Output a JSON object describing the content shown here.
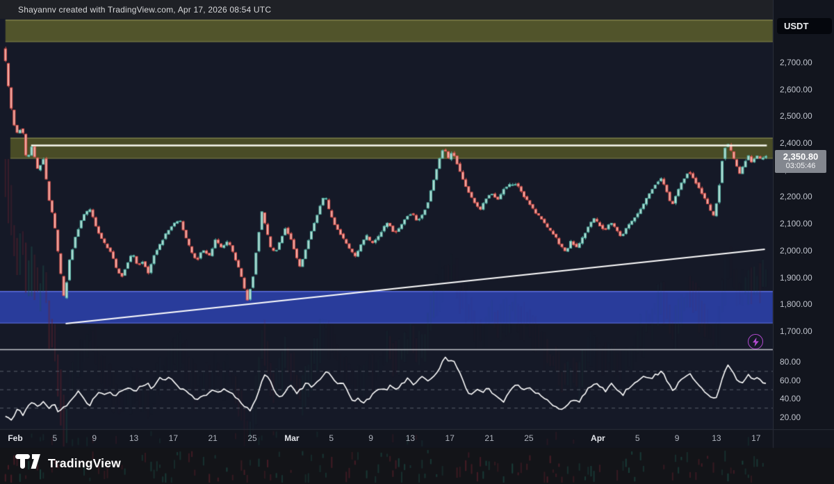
{
  "watermark": {
    "text": "Shayannv created with TradingView.com, Apr 17, 2026 08:54 UTC"
  },
  "symbol_badge": {
    "label": "USDT"
  },
  "logo": {
    "text": "TradingView",
    "icon": "tradingview-mark"
  },
  "price_badge": {
    "price": "2,350.80",
    "countdown": "03:05:46"
  },
  "price_axis": {
    "ticks": [
      {
        "label": "2,700.00",
        "value": 2700
      },
      {
        "label": "2,600.00",
        "value": 2600
      },
      {
        "label": "2,500.00",
        "value": 2500
      },
      {
        "label": "2,400.00",
        "value": 2400
      },
      {
        "label": "2,300.00",
        "value": 2300
      },
      {
        "label": "2,200.00",
        "value": 2200
      },
      {
        "label": "2,100.00",
        "value": 2100
      },
      {
        "label": "2,000.00",
        "value": 2000
      },
      {
        "label": "1,900.00",
        "value": 1900
      },
      {
        "label": "1,800.00",
        "value": 1800
      },
      {
        "label": "1,700.00",
        "value": 1700
      }
    ]
  },
  "rsi_axis": {
    "ticks": [
      {
        "label": "80.00",
        "value": 80
      },
      {
        "label": "60.00",
        "value": 60
      },
      {
        "label": "40.00",
        "value": 40
      },
      {
        "label": "20.00",
        "value": 20
      }
    ]
  },
  "x_axis": {
    "labels": [
      {
        "text": "Feb",
        "day": 0,
        "month": true
      },
      {
        "text": "5",
        "day": 4
      },
      {
        "text": "9",
        "day": 8
      },
      {
        "text": "13",
        "day": 12
      },
      {
        "text": "17",
        "day": 16
      },
      {
        "text": "21",
        "day": 20
      },
      {
        "text": "25",
        "day": 24
      },
      {
        "text": "Mar",
        "day": 28,
        "month": true
      },
      {
        "text": "5",
        "day": 32
      },
      {
        "text": "9",
        "day": 36
      },
      {
        "text": "13",
        "day": 40
      },
      {
        "text": "17",
        "day": 44
      },
      {
        "text": "21",
        "day": 48
      },
      {
        "text": "25",
        "day": 52
      },
      {
        "text": "Apr",
        "day": 59,
        "month": true
      },
      {
        "text": "5",
        "day": 63
      },
      {
        "text": "9",
        "day": 67
      },
      {
        "text": "13",
        "day": 71
      },
      {
        "text": "17",
        "day": 75
      }
    ]
  },
  "chart_data": {
    "type": "candlestick",
    "quote_currency": "USDT",
    "period_shown": "Feb 1 - Apr 17",
    "last_price": 2350.8,
    "countdown": "03:05:46",
    "y_axis": {
      "min": 1633,
      "max": 2862,
      "tick_step": 100,
      "ticks": [
        2700,
        2600,
        2500,
        2400,
        2300,
        2200,
        2100,
        2000,
        1900,
        1800,
        1700
      ]
    },
    "x_axis_days": {
      "start_day": -1.6,
      "end_day": 76.7
    },
    "zones": [
      {
        "name": "upper-band",
        "price_from": 2777,
        "price_to": 2857,
        "day_from": -1.0,
        "day_to": 76.7,
        "fill": "#54562c",
        "border": "#84864b"
      },
      {
        "name": "resistance-zone",
        "price_from": 2343,
        "price_to": 2418,
        "day_from": -0.5,
        "day_to": 76.7,
        "fill": "#4c4e27",
        "border": "#7e8048"
      },
      {
        "name": "support-zone",
        "price_from": 1731,
        "price_to": 1848,
        "day_from": -1.6,
        "day_to": 76.7,
        "fill": "#2b3da0",
        "border": "#5d6fe0"
      }
    ],
    "hline": {
      "price": 2391,
      "day_from": 1.6,
      "day_to": 76.1,
      "color": "#fafaf2"
    },
    "trendline": {
      "from_day": 5.1,
      "from_price": 1729,
      "to_day": 75.9,
      "to_price": 2005,
      "color": "#ffffff"
    },
    "price_path": [
      [
        -1.0,
        2750
      ],
      [
        -0.6,
        2620
      ],
      [
        -0.1,
        2480
      ],
      [
        0.4,
        2430
      ],
      [
        0.8,
        2470
      ],
      [
        1.3,
        2330
      ],
      [
        1.8,
        2390
      ],
      [
        2.4,
        2300
      ],
      [
        3.0,
        2340
      ],
      [
        3.5,
        2200
      ],
      [
        4.1,
        2100
      ],
      [
        4.6,
        1950
      ],
      [
        5.1,
        1815
      ],
      [
        5.6,
        1960
      ],
      [
        6.3,
        2060
      ],
      [
        7.0,
        2130
      ],
      [
        7.7,
        2155
      ],
      [
        8.4,
        2080
      ],
      [
        9.1,
        2030
      ],
      [
        9.9,
        1990
      ],
      [
        10.4,
        1930
      ],
      [
        10.9,
        1903
      ],
      [
        11.5,
        1955
      ],
      [
        12.0,
        1990
      ],
      [
        12.5,
        1945
      ],
      [
        13.1,
        1960
      ],
      [
        13.6,
        1915
      ],
      [
        14.2,
        1985
      ],
      [
        14.9,
        2030
      ],
      [
        15.5,
        2070
      ],
      [
        16.2,
        2100
      ],
      [
        16.8,
        2115
      ],
      [
        17.3,
        2060
      ],
      [
        17.9,
        2000
      ],
      [
        18.5,
        1962
      ],
      [
        19.1,
        2005
      ],
      [
        19.8,
        1980
      ],
      [
        20.4,
        2040
      ],
      [
        21.0,
        2010
      ],
      [
        21.7,
        2035
      ],
      [
        22.2,
        1990
      ],
      [
        22.8,
        1930
      ],
      [
        23.2,
        1880
      ],
      [
        23.6,
        1812
      ],
      [
        24.2,
        1900
      ],
      [
        24.6,
        2020
      ],
      [
        25.1,
        2145
      ],
      [
        25.5,
        2085
      ],
      [
        26.0,
        2010
      ],
      [
        26.5,
        1995
      ],
      [
        27.0,
        2040
      ],
      [
        27.5,
        2085
      ],
      [
        28.1,
        2040
      ],
      [
        28.6,
        1975
      ],
      [
        29.0,
        1938
      ],
      [
        29.5,
        2000
      ],
      [
        30.0,
        2060
      ],
      [
        30.6,
        2120
      ],
      [
        31.1,
        2180
      ],
      [
        31.5,
        2205
      ],
      [
        31.9,
        2150
      ],
      [
        32.5,
        2095
      ],
      [
        33.1,
        2060
      ],
      [
        33.6,
        2030
      ],
      [
        34.1,
        2000
      ],
      [
        34.6,
        1978
      ],
      [
        35.1,
        2020
      ],
      [
        35.7,
        2055
      ],
      [
        36.2,
        2025
      ],
      [
        36.8,
        2045
      ],
      [
        37.4,
        2085
      ],
      [
        37.9,
        2105
      ],
      [
        38.5,
        2065
      ],
      [
        39.1,
        2085
      ],
      [
        39.7,
        2125
      ],
      [
        40.3,
        2140
      ],
      [
        40.8,
        2110
      ],
      [
        41.4,
        2135
      ],
      [
        41.9,
        2180
      ],
      [
        42.5,
        2260
      ],
      [
        43.0,
        2330
      ],
      [
        43.5,
        2385
      ],
      [
        44.0,
        2340
      ],
      [
        44.4,
        2370
      ],
      [
        44.9,
        2320
      ],
      [
        45.5,
        2260
      ],
      [
        46.0,
        2220
      ],
      [
        46.6,
        2180
      ],
      [
        47.2,
        2150
      ],
      [
        47.7,
        2190
      ],
      [
        48.3,
        2215
      ],
      [
        49.0,
        2190
      ],
      [
        49.6,
        2230
      ],
      [
        50.2,
        2245
      ],
      [
        50.9,
        2250
      ],
      [
        51.5,
        2210
      ],
      [
        52.1,
        2180
      ],
      [
        52.8,
        2140
      ],
      [
        53.4,
        2120
      ],
      [
        54.0,
        2085
      ],
      [
        54.7,
        2060
      ],
      [
        55.3,
        2020
      ],
      [
        55.9,
        1995
      ],
      [
        56.4,
        2035
      ],
      [
        57.0,
        2010
      ],
      [
        57.6,
        2050
      ],
      [
        58.1,
        2085
      ],
      [
        58.7,
        2120
      ],
      [
        59.3,
        2095
      ],
      [
        59.8,
        2075
      ],
      [
        60.4,
        2105
      ],
      [
        60.9,
        2085
      ],
      [
        61.5,
        2050
      ],
      [
        62.1,
        2090
      ],
      [
        62.6,
        2110
      ],
      [
        63.2,
        2140
      ],
      [
        63.8,
        2175
      ],
      [
        64.3,
        2210
      ],
      [
        64.9,
        2245
      ],
      [
        65.5,
        2270
      ],
      [
        66.0,
        2230
      ],
      [
        66.6,
        2165
      ],
      [
        67.1,
        2210
      ],
      [
        67.7,
        2260
      ],
      [
        68.3,
        2295
      ],
      [
        68.8,
        2270
      ],
      [
        69.4,
        2230
      ],
      [
        70.0,
        2190
      ],
      [
        70.5,
        2150
      ],
      [
        70.9,
        2125
      ],
      [
        71.4,
        2240
      ],
      [
        71.8,
        2360
      ],
      [
        72.2,
        2405
      ],
      [
        72.6,
        2370
      ],
      [
        73.0,
        2330
      ],
      [
        73.5,
        2285
      ],
      [
        73.9,
        2320
      ],
      [
        74.3,
        2355
      ],
      [
        74.7,
        2330
      ],
      [
        75.2,
        2350
      ],
      [
        75.6,
        2340
      ],
      [
        76.0,
        2351
      ]
    ],
    "rsi": {
      "levels": [
        70,
        50,
        30
      ],
      "axis_ticks": [
        80,
        60,
        40,
        20
      ],
      "path": [
        [
          -1.5,
          28
        ],
        [
          -1.0,
          22
        ],
        [
          -0.5,
          15
        ],
        [
          0.3,
          30
        ],
        [
          0.8,
          22
        ],
        [
          1.6,
          37
        ],
        [
          2.3,
          30
        ],
        [
          2.8,
          37
        ],
        [
          3.4,
          30
        ],
        [
          3.9,
          36
        ],
        [
          4.4,
          25
        ],
        [
          5.0,
          32
        ],
        [
          5.5,
          36
        ],
        [
          6.0,
          44
        ],
        [
          6.5,
          48
        ],
        [
          7.0,
          40
        ],
        [
          7.5,
          32
        ],
        [
          8.3,
          47
        ],
        [
          9.0,
          43
        ],
        [
          9.6,
          48
        ],
        [
          10.0,
          42
        ],
        [
          10.8,
          50
        ],
        [
          11.5,
          52
        ],
        [
          12.0,
          47
        ],
        [
          12.7,
          54
        ],
        [
          13.4,
          57
        ],
        [
          13.9,
          50
        ],
        [
          14.5,
          63
        ],
        [
          15.1,
          60
        ],
        [
          15.6,
          62
        ],
        [
          16.1,
          57
        ],
        [
          16.6,
          52
        ],
        [
          17.2,
          48
        ],
        [
          17.7,
          45
        ],
        [
          18.3,
          38
        ],
        [
          18.9,
          44
        ],
        [
          19.4,
          42
        ],
        [
          20.0,
          50
        ],
        [
          20.5,
          46
        ],
        [
          21.1,
          52
        ],
        [
          21.7,
          48
        ],
        [
          22.2,
          42
        ],
        [
          22.8,
          36
        ],
        [
          23.4,
          30
        ],
        [
          23.8,
          28
        ],
        [
          24.6,
          45
        ],
        [
          25.2,
          68
        ],
        [
          25.8,
          60
        ],
        [
          26.2,
          50
        ],
        [
          26.8,
          40
        ],
        [
          27.3,
          46
        ],
        [
          27.9,
          55
        ],
        [
          28.4,
          46
        ],
        [
          28.9,
          50
        ],
        [
          29.6,
          58
        ],
        [
          30.1,
          52
        ],
        [
          30.7,
          60
        ],
        [
          31.2,
          64
        ],
        [
          31.6,
          70
        ],
        [
          32.1,
          62
        ],
        [
          32.7,
          55
        ],
        [
          33.2,
          58
        ],
        [
          33.8,
          45
        ],
        [
          34.3,
          36
        ],
        [
          34.8,
          40
        ],
        [
          35.3,
          36
        ],
        [
          35.8,
          40
        ],
        [
          36.4,
          46
        ],
        [
          36.9,
          52
        ],
        [
          37.5,
          48
        ],
        [
          38.1,
          55
        ],
        [
          38.6,
          50
        ],
        [
          39.2,
          57
        ],
        [
          39.8,
          62
        ],
        [
          40.3,
          55
        ],
        [
          40.8,
          60
        ],
        [
          41.2,
          64
        ],
        [
          41.7,
          58
        ],
        [
          42.2,
          62
        ],
        [
          42.8,
          70
        ],
        [
          43.2,
          80
        ],
        [
          43.6,
          85
        ],
        [
          44.0,
          78
        ],
        [
          44.3,
          82
        ],
        [
          44.8,
          72
        ],
        [
          45.3,
          60
        ],
        [
          45.7,
          48
        ],
        [
          46.3,
          45
        ],
        [
          46.8,
          50
        ],
        [
          47.3,
          46
        ],
        [
          47.9,
          52
        ],
        [
          48.4,
          45
        ],
        [
          48.9,
          42
        ],
        [
          49.3,
          35
        ],
        [
          49.9,
          45
        ],
        [
          50.4,
          52
        ],
        [
          50.9,
          55
        ],
        [
          51.4,
          50
        ],
        [
          51.9,
          53
        ],
        [
          52.6,
          48
        ],
        [
          53.3,
          42
        ],
        [
          54.0,
          38
        ],
        [
          54.7,
          31
        ],
        [
          55.3,
          29
        ],
        [
          55.9,
          34
        ],
        [
          56.4,
          40
        ],
        [
          57.0,
          36
        ],
        [
          57.6,
          44
        ],
        [
          58.1,
          52
        ],
        [
          58.7,
          58
        ],
        [
          59.3,
          52
        ],
        [
          59.8,
          48
        ],
        [
          60.4,
          56
        ],
        [
          61.0,
          50
        ],
        [
          61.5,
          44
        ],
        [
          62.1,
          52
        ],
        [
          62.6,
          56
        ],
        [
          63.2,
          60
        ],
        [
          63.8,
          64
        ],
        [
          64.3,
          62
        ],
        [
          64.9,
          66
        ],
        [
          65.5,
          70
        ],
        [
          66.0,
          58
        ],
        [
          66.6,
          48
        ],
        [
          67.1,
          56
        ],
        [
          67.7,
          64
        ],
        [
          68.3,
          68
        ],
        [
          68.8,
          60
        ],
        [
          69.4,
          52
        ],
        [
          70.0,
          46
        ],
        [
          70.5,
          42
        ],
        [
          71.0,
          40
        ],
        [
          71.4,
          55
        ],
        [
          71.8,
          68
        ],
        [
          72.2,
          76
        ],
        [
          72.6,
          70
        ],
        [
          73.0,
          62
        ],
        [
          73.5,
          56
        ],
        [
          73.9,
          62
        ],
        [
          74.3,
          66
        ],
        [
          74.7,
          60
        ],
        [
          75.2,
          63
        ],
        [
          75.6,
          56
        ],
        [
          76.0,
          58
        ]
      ]
    },
    "colors": {
      "background": "#151927",
      "axis_bg": "#12151e",
      "watermark_bar": "#1f2126",
      "bottom_bar": "#131418",
      "up_border": "#56b8aa",
      "up_fill": "#b9ded6",
      "down_border": "#e4564f",
      "down_fill": "#efb0a9",
      "ghost_up": "#1e5a50",
      "ghost_down": "#6e2330",
      "rsi_line": "#ffffff",
      "rsi_level": "#5a5f6b",
      "separator": "#c6c8ce",
      "pane_border": "#2a2e39",
      "text": "#bfc3cc",
      "text_bright": "#e3e5ea",
      "badge_bg": "#83878f",
      "accent_purple": "#b44bd2"
    }
  }
}
